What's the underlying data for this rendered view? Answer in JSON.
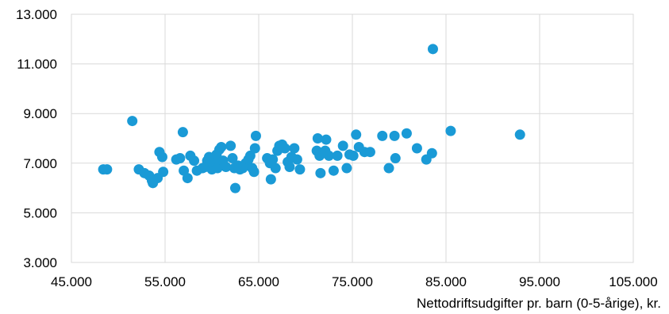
{
  "chart_data": {
    "type": "scatter",
    "title": "",
    "ylabel_fragment": "",
    "xlabel": "Nettodriftsudgifter pr. barn (0-5-årige), kr.",
    "ylabel": "",
    "xlim": [
      45000,
      105000
    ],
    "ylim": [
      3000,
      13000
    ],
    "x_ticks": [
      45000,
      55000,
      65000,
      75000,
      85000,
      95000,
      105000
    ],
    "x_tick_labels": [
      "45.000",
      "55.000",
      "65.000",
      "75.000",
      "85.000",
      "95.000",
      "105.000"
    ],
    "y_ticks": [
      3000,
      5000,
      7000,
      9000,
      11000,
      13000
    ],
    "y_tick_labels": [
      "3.000",
      "5.000",
      "7.000",
      "9.000",
      "11.000",
      "13.000"
    ],
    "grid": true,
    "legend": "none",
    "marker_color": "#1a9ad6",
    "series": [
      {
        "points": [
          [
            48400,
            6750
          ],
          [
            48800,
            6750
          ],
          [
            51500,
            8700
          ],
          [
            52200,
            6750
          ],
          [
            52800,
            6600
          ],
          [
            53300,
            6500
          ],
          [
            53600,
            6300
          ],
          [
            53700,
            6200
          ],
          [
            54200,
            6400
          ],
          [
            54400,
            7450
          ],
          [
            54700,
            7250
          ],
          [
            54800,
            6650
          ],
          [
            56200,
            7150
          ],
          [
            56600,
            7200
          ],
          [
            56900,
            8250
          ],
          [
            57000,
            6700
          ],
          [
            57400,
            6400
          ],
          [
            57700,
            7300
          ],
          [
            58100,
            7100
          ],
          [
            58400,
            6700
          ],
          [
            59000,
            6800
          ],
          [
            59300,
            6850
          ],
          [
            59500,
            7100
          ],
          [
            59700,
            7250
          ],
          [
            60000,
            6750
          ],
          [
            60200,
            6900
          ],
          [
            60300,
            7050
          ],
          [
            60500,
            7350
          ],
          [
            60600,
            6800
          ],
          [
            60800,
            7550
          ],
          [
            61000,
            7650
          ],
          [
            61200,
            7100
          ],
          [
            61500,
            6850
          ],
          [
            62000,
            7700
          ],
          [
            62200,
            7200
          ],
          [
            62400,
            6800
          ],
          [
            62500,
            6000
          ],
          [
            62800,
            6900
          ],
          [
            63000,
            6750
          ],
          [
            63300,
            6800
          ],
          [
            63600,
            7000
          ],
          [
            63900,
            7150
          ],
          [
            64100,
            7300
          ],
          [
            64300,
            6800
          ],
          [
            64500,
            6650
          ],
          [
            64600,
            7600
          ],
          [
            64700,
            8100
          ],
          [
            65900,
            7200
          ],
          [
            66200,
            7000
          ],
          [
            66300,
            6350
          ],
          [
            66500,
            7150
          ],
          [
            66800,
            6800
          ],
          [
            67000,
            7500
          ],
          [
            67200,
            7700
          ],
          [
            67500,
            7750
          ],
          [
            67800,
            7600
          ],
          [
            68100,
            7050
          ],
          [
            68300,
            6850
          ],
          [
            68500,
            7250
          ],
          [
            68800,
            7600
          ],
          [
            69100,
            7150
          ],
          [
            69400,
            6750
          ],
          [
            71200,
            7500
          ],
          [
            71300,
            8000
          ],
          [
            71500,
            7300
          ],
          [
            71600,
            6600
          ],
          [
            72100,
            7500
          ],
          [
            72200,
            7950
          ],
          [
            72500,
            7300
          ],
          [
            73000,
            6700
          ],
          [
            73400,
            7300
          ],
          [
            74000,
            7700
          ],
          [
            74400,
            6800
          ],
          [
            74700,
            7350
          ],
          [
            75100,
            7300
          ],
          [
            75400,
            8150
          ],
          [
            75700,
            7650
          ],
          [
            76300,
            7450
          ],
          [
            76900,
            7450
          ],
          [
            78200,
            8100
          ],
          [
            78900,
            6800
          ],
          [
            79500,
            8100
          ],
          [
            79600,
            7200
          ],
          [
            80800,
            8200
          ],
          [
            81900,
            7600
          ],
          [
            82900,
            7150
          ],
          [
            83500,
            7400
          ],
          [
            83600,
            11600
          ],
          [
            85500,
            8300
          ],
          [
            92900,
            8150
          ]
        ]
      }
    ]
  }
}
